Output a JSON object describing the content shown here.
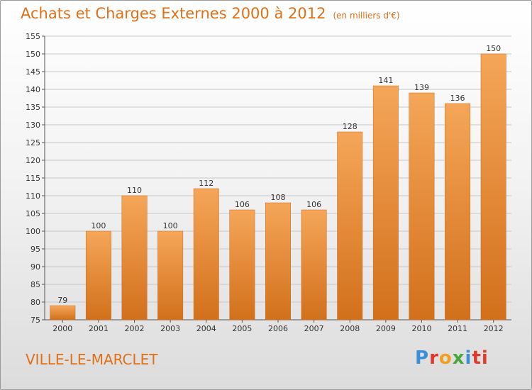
{
  "title": "Achats et Charges Externes 2000 à 2012",
  "unit": "(en milliers d'€)",
  "city": "VILLE-LE-MARCLET",
  "logo": [
    "P",
    "r",
    "o",
    "x",
    "i",
    "ti"
  ],
  "chart_data": {
    "type": "bar",
    "categories": [
      "2000",
      "2001",
      "2002",
      "2003",
      "2004",
      "2005",
      "2006",
      "2007",
      "2008",
      "2009",
      "2010",
      "2011",
      "2012"
    ],
    "values": [
      79,
      100,
      110,
      100,
      112,
      106,
      108,
      106,
      128,
      141,
      139,
      136,
      150
    ],
    "ylim": [
      75,
      155
    ],
    "yticks": [
      75,
      80,
      85,
      90,
      95,
      100,
      105,
      110,
      115,
      120,
      125,
      130,
      135,
      140,
      145,
      150,
      155
    ],
    "grid": true,
    "colors": {
      "bar_top": "#f5a658",
      "bar_bottom": "#d2701c",
      "text": "#e07018"
    }
  }
}
